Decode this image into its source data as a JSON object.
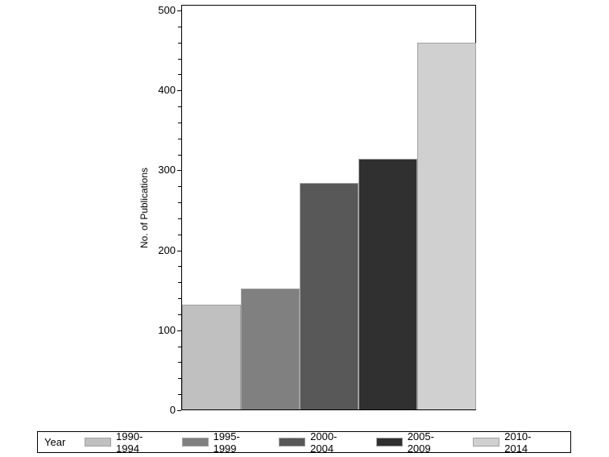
{
  "chart_data": {
    "type": "bar",
    "title": "",
    "xlabel": "",
    "ylabel": "No. of Publications",
    "ylim": [
      0,
      500
    ],
    "yticks": [
      0,
      100,
      200,
      300,
      400,
      500
    ],
    "grid": false,
    "legend_position": "bottom",
    "legend_title": "Year",
    "categories": [
      "1990-1994",
      "1995-1999",
      "2000-2004",
      "2005-2009",
      "2010-2014"
    ],
    "values": [
      131,
      151,
      283,
      314,
      459
    ],
    "colors": [
      "#c0c0c0",
      "#808080",
      "#585858",
      "#303030",
      "#d0d0d0"
    ]
  },
  "axis": {
    "y_title": "No. of Publications",
    "y_labels": [
      "0",
      "100",
      "200",
      "300",
      "400",
      "500"
    ]
  },
  "legend": {
    "title": "Year",
    "items": [
      {
        "label": "1990-1994",
        "color": "#c0c0c0"
      },
      {
        "label": "1995-1999",
        "color": "#808080"
      },
      {
        "label": "2000-2004",
        "color": "#585858"
      },
      {
        "label": "2005-2009",
        "color": "#303030"
      },
      {
        "label": "2010-2014",
        "color": "#d0d0d0"
      }
    ]
  }
}
